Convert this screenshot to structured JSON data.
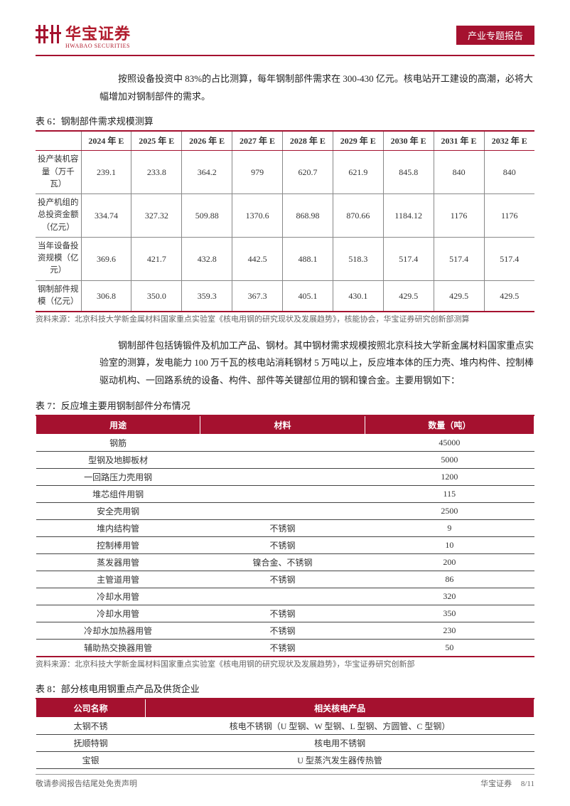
{
  "header": {
    "logo_cn": "华宝证券",
    "logo_en": "HWABAO SECURITIES",
    "badge": "产业专题报告"
  },
  "para1": "按照设备投资中 83%的占比测算，每年钢制部件需求在 300-430 亿元。核电站开工建设的高潮，必将大幅增加对钢制部件的需求。",
  "table6": {
    "caption": "表 6：钢制部件需求规模测算",
    "headers": [
      "",
      "2024 年 E",
      "2025 年 E",
      "2026 年 E",
      "2027 年 E",
      "2028 年 E",
      "2029 年 E",
      "2030 年 E",
      "2031 年 E",
      "2032 年 E"
    ],
    "rows": [
      [
        "投产装机容量（万千瓦）",
        "239.1",
        "233.8",
        "364.2",
        "979",
        "620.7",
        "621.9",
        "845.8",
        "840",
        "840"
      ],
      [
        "投产机组的总投资金额（亿元）",
        "334.74",
        "327.32",
        "509.88",
        "1370.6",
        "868.98",
        "870.66",
        "1184.12",
        "1176",
        "1176"
      ],
      [
        "当年设备投资规模（亿元）",
        "369.6",
        "421.7",
        "432.8",
        "442.5",
        "488.1",
        "518.3",
        "517.4",
        "517.4",
        "517.4"
      ],
      [
        "钢制部件规模（亿元）",
        "306.8",
        "350.0",
        "359.3",
        "367.3",
        "405.1",
        "430.1",
        "429.5",
        "429.5",
        "429.5"
      ]
    ],
    "source": "资料来源：北京科技大学新金属材料国家重点实验室《核电用钢的研究现状及发展趋势》，核能协会，华宝证券研究创新部测算"
  },
  "para2": "钢制部件包括铸锻件及机加工产品、钢材。其中钢材需求规模按照北京科技大学新金属材料国家重点实验室的测算，发电能力 100 万千瓦的核电站消耗钢材 5 万吨以上，反应堆本体的压力壳、堆内构件、控制棒驱动机构、一回路系统的设备、构件、部件等关键部位用的钢和镍合金。主要用钢如下：",
  "table7": {
    "caption": "表 7：反应堆主要用钢制部件分布情况",
    "headers": [
      "用途",
      "材料",
      "数量（吨）"
    ],
    "rows": [
      [
        "钢筋",
        "",
        "45000"
      ],
      [
        "型钢及地脚板材",
        "",
        "5000"
      ],
      [
        "一回路压力壳用钢",
        "",
        "1200"
      ],
      [
        "堆芯组件用钢",
        "",
        "115"
      ],
      [
        "安全壳用钢",
        "",
        "2500"
      ],
      [
        "堆内结构管",
        "不锈钢",
        "9"
      ],
      [
        "控制棒用管",
        "不锈钢",
        "10"
      ],
      [
        "蒸发器用管",
        "镍合金、不锈钢",
        "200"
      ],
      [
        "主管道用管",
        "不锈钢",
        "86"
      ],
      [
        "冷却水用管",
        "",
        "320"
      ],
      [
        "冷却水用管",
        "不锈钢",
        "350"
      ],
      [
        "冷却水加热器用管",
        "不锈钢",
        "230"
      ],
      [
        "辅助热交换器用管",
        "不锈钢",
        "50"
      ]
    ],
    "source": "资料来源：北京科技大学新金属材料国家重点实验室《核电用钢的研究现状及发展趋势》，华宝证券研究创新部"
  },
  "table8": {
    "caption": "表 8：部分核电用钢重点产品及供货企业",
    "headers": [
      "公司名称",
      "相关核电产品"
    ],
    "rows": [
      [
        "太钢不锈",
        "核电不锈钢（U 型钢、W 型钢、L 型钢、方圆管、C 型钢）"
      ],
      [
        "抚顺特钢",
        "核电用不锈钢"
      ],
      [
        "宝银",
        "U 型蒸汽发生器传热管"
      ]
    ]
  },
  "footer": {
    "left": "敬请参阅报告结尾处免责声明",
    "right_name": "华宝证券",
    "right_page": "8/11"
  },
  "colors": {
    "brand": "#a5112f"
  }
}
